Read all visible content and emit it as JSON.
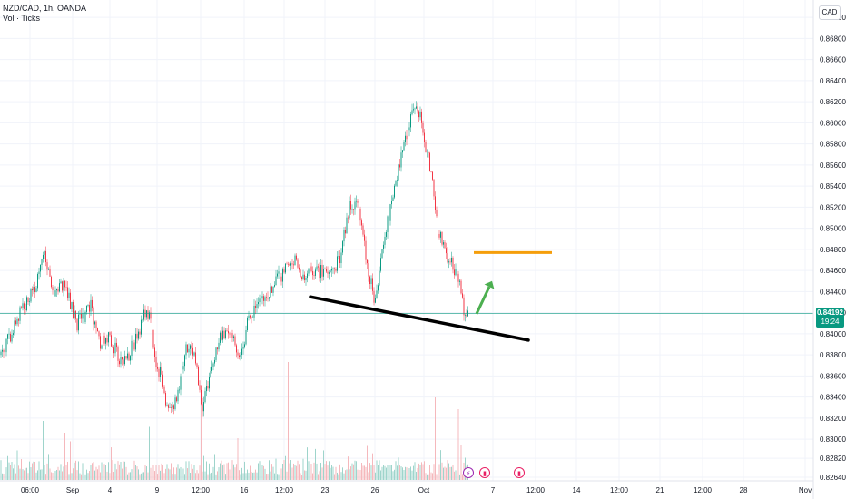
{
  "header": {
    "symbol": "NZD/CAD, 1h, OANDA",
    "indicator": "Vol · Ticks",
    "currency": "CAD"
  },
  "price_tag": {
    "price": "0.84192",
    "countdown": "19:24"
  },
  "colors": {
    "up": "#089981",
    "down": "#f23645",
    "vol_up": "#9ed4cb",
    "vol_down": "#f5b8bc",
    "trendline": "#000000",
    "target_line": "#f59e0b",
    "arrow": "#4caf50",
    "price_line": "#089981"
  },
  "events": [
    {
      "icon": "lightning-icon",
      "label": "⚡",
      "x_index": 512,
      "color": "#9c27b0"
    },
    {
      "icon": "flag-icon",
      "label": "▮",
      "x_index": 530,
      "color": "#e91e63"
    },
    {
      "icon": "flag-icon",
      "label": "▮",
      "x_index": 568,
      "color": "#e91e63"
    }
  ],
  "chart_data": {
    "type": "candlestick",
    "title": "NZD/CAD, 1h, OANDA",
    "y_ticks": [
      "0.87000",
      "0.86800",
      "0.86600",
      "0.86400",
      "0.86200",
      "0.86000",
      "0.85800",
      "0.85600",
      "0.85400",
      "0.85200",
      "0.85000",
      "0.84800",
      "0.84600",
      "0.84400",
      "0.84200",
      "0.84000",
      "0.83800",
      "0.83600",
      "0.83400",
      "0.83200",
      "0.83000",
      "0.82820",
      "0.82640"
    ],
    "ylim": [
      0.8264,
      0.8707
    ],
    "x_ticks": [
      "06:00",
      "Sep",
      "4",
      "9",
      "12:00",
      "16",
      "12:00",
      "23",
      "26",
      "Oct",
      "7",
      "12:00",
      "14",
      "12:00",
      "21",
      "12:00",
      "28",
      "Nov"
    ],
    "current_price": 0.84192,
    "price_path": [
      [
        0,
        0.838
      ],
      [
        12,
        0.84
      ],
      [
        25,
        0.8425
      ],
      [
        38,
        0.844
      ],
      [
        48,
        0.8475
      ],
      [
        58,
        0.844
      ],
      [
        70,
        0.8448
      ],
      [
        85,
        0.841
      ],
      [
        100,
        0.8425
      ],
      [
        110,
        0.839
      ],
      [
        120,
        0.84
      ],
      [
        132,
        0.8375
      ],
      [
        140,
        0.8378
      ],
      [
        150,
        0.8395
      ],
      [
        160,
        0.8422
      ],
      [
        165,
        0.842
      ],
      [
        170,
        0.8375
      ],
      [
        178,
        0.836
      ],
      [
        185,
        0.8325
      ],
      [
        195,
        0.834
      ],
      [
        205,
        0.8385
      ],
      [
        215,
        0.838
      ],
      [
        222,
        0.833
      ],
      [
        232,
        0.836
      ],
      [
        242,
        0.84
      ],
      [
        255,
        0.84
      ],
      [
        265,
        0.8375
      ],
      [
        275,
        0.842
      ],
      [
        290,
        0.843
      ],
      [
        305,
        0.845
      ],
      [
        318,
        0.8465
      ],
      [
        325,
        0.847
      ],
      [
        335,
        0.845
      ],
      [
        345,
        0.8462
      ],
      [
        355,
        0.8458
      ],
      [
        365,
        0.8462
      ],
      [
        375,
        0.847
      ],
      [
        385,
        0.8525
      ],
      [
        395,
        0.852
      ],
      [
        403,
        0.8475
      ],
      [
        413,
        0.8428
      ],
      [
        422,
        0.8485
      ],
      [
        432,
        0.8525
      ],
      [
        440,
        0.856
      ],
      [
        448,
        0.859
      ],
      [
        455,
        0.8612
      ],
      [
        462,
        0.861
      ],
      [
        468,
        0.858
      ],
      [
        476,
        0.855
      ],
      [
        482,
        0.85
      ],
      [
        490,
        0.848
      ],
      [
        498,
        0.8465
      ],
      [
        505,
        0.845
      ],
      [
        512,
        0.8418
      ],
      [
        516,
        0.8419
      ]
    ],
    "volume_spikes": [
      [
        48,
        0.5
      ],
      [
        72,
        0.4
      ],
      [
        165,
        0.45
      ],
      [
        222,
        0.8
      ],
      [
        318,
        1.0
      ],
      [
        480,
        0.7
      ],
      [
        505,
        0.6
      ]
    ]
  },
  "drawings": {
    "trendline": {
      "from": [
        342,
        0.8435
      ],
      "to": [
        582,
        0.8394
      ]
    },
    "target_line": {
      "from": [
        522,
        0.8477
      ],
      "to": [
        608,
        0.8477
      ]
    },
    "arrow": {
      "from": [
        525,
        0.8419
      ],
      "to": [
        542,
        0.845
      ]
    }
  }
}
